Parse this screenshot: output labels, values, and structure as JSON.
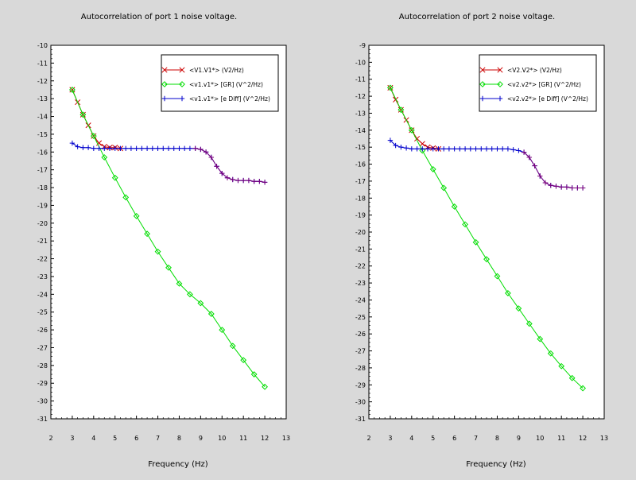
{
  "chart_data": [
    {
      "type": "line",
      "title": "Autocorrelation of port 1 noise voltage.",
      "xlabel": "Frequency (Hz)",
      "ylabel": "",
      "xlim": [
        2,
        13
      ],
      "ylim": [
        -31,
        -10
      ],
      "xticks": [
        2,
        3,
        4,
        5,
        6,
        7,
        8,
        9,
        10,
        11,
        12,
        13
      ],
      "yticks": [
        -10,
        -11,
        -12,
        -13,
        -14,
        -15,
        -16,
        -17,
        -18,
        -19,
        -20,
        -21,
        -22,
        -23,
        -24,
        -25,
        -26,
        -27,
        -28,
        -29,
        -30,
        -31
      ],
      "legend_position": "top-right",
      "series": [
        {
          "name": "<V1.V1*> (V2/Hz)",
          "color": "#cc0000",
          "marker": "x",
          "x": [
            3.0,
            3.25,
            3.5,
            3.75,
            4.0,
            4.25,
            4.5,
            4.75,
            5.0,
            5.25
          ],
          "y": [
            -12.5,
            -13.2,
            -13.9,
            -14.5,
            -15.1,
            -15.5,
            -15.7,
            -15.75,
            -15.75,
            -15.8
          ]
        },
        {
          "name": "<v1.v1*> [GR] (V^2/Hz)",
          "color": "#00dd00",
          "marker": "diamond",
          "x": [
            3.0,
            3.5,
            4.0,
            4.5,
            5.0,
            5.5,
            6.0,
            6.5,
            7.0,
            7.5,
            8.0,
            8.5,
            9.0,
            9.5,
            10.0,
            10.5,
            11.0,
            11.5,
            12.0
          ],
          "y": [
            -12.5,
            -13.9,
            -15.1,
            -16.3,
            -17.45,
            -18.55,
            -19.6,
            -20.6,
            -21.6,
            -22.5,
            -23.4,
            -24.0,
            -24.5,
            -25.1,
            -26.0,
            -26.9,
            -27.7,
            -28.5,
            -29.2
          ]
        },
        {
          "name": "<v1.v1*> [e Diff] (V^2/Hz)",
          "color": "#0000cc",
          "marker": "plus",
          "x": [
            3.0,
            3.25,
            3.5,
            3.75,
            4.0,
            4.25,
            4.5,
            4.75,
            5.0,
            5.25,
            5.5,
            5.75,
            6.0,
            6.25,
            6.5,
            6.75,
            7.0,
            7.25,
            7.5,
            7.75,
            8.0,
            8.25,
            8.5,
            8.75,
            9.0,
            9.25,
            9.5,
            9.75,
            10.0,
            10.25,
            10.5,
            10.75,
            11.0,
            11.25,
            11.5,
            11.75,
            12.0
          ],
          "y": [
            -15.5,
            -15.7,
            -15.75,
            -15.75,
            -15.8,
            -15.8,
            -15.8,
            -15.8,
            -15.8,
            -15.8,
            -15.8,
            -15.8,
            -15.8,
            -15.8,
            -15.8,
            -15.8,
            -15.8,
            -15.8,
            -15.8,
            -15.8,
            -15.8,
            -15.8,
            -15.8,
            -15.8,
            -15.85,
            -16.0,
            -16.3,
            -16.8,
            -17.2,
            -17.45,
            -17.55,
            -17.6,
            -17.6,
            -17.6,
            -17.65,
            -17.65,
            -17.7
          ]
        },
        {
          "name": "",
          "color": "#7a007a",
          "marker": "plus",
          "x": [
            8.75,
            9.0,
            9.25,
            9.5,
            9.75,
            10.0,
            10.25,
            10.5,
            10.75,
            11.0,
            11.25,
            11.5,
            11.75,
            12.0
          ],
          "y": [
            -15.8,
            -15.85,
            -16.0,
            -16.3,
            -16.8,
            -17.2,
            -17.45,
            -17.55,
            -17.6,
            -17.6,
            -17.6,
            -17.65,
            -17.65,
            -17.7
          ]
        }
      ]
    },
    {
      "type": "line",
      "title": "Autocorrelation of port 2 noise voltage.",
      "xlabel": "Frequency (Hz)",
      "ylabel": "",
      "xlim": [
        2,
        13
      ],
      "ylim": [
        -31,
        -9
      ],
      "xticks": [
        2,
        3,
        4,
        5,
        6,
        7,
        8,
        9,
        10,
        11,
        12,
        13
      ],
      "yticks": [
        -9,
        -10,
        -11,
        -12,
        -13,
        -14,
        -15,
        -16,
        -17,
        -18,
        -19,
        -20,
        -21,
        -22,
        -23,
        -24,
        -25,
        -26,
        -27,
        -28,
        -29,
        -30,
        -31
      ],
      "legend_position": "top-right",
      "series": [
        {
          "name": "<V2.V2*> (V2/Hz)",
          "color": "#cc0000",
          "marker": "x",
          "x": [
            3.0,
            3.25,
            3.5,
            3.75,
            4.0,
            4.25,
            4.5,
            4.75,
            5.0,
            5.25
          ],
          "y": [
            -11.5,
            -12.2,
            -12.8,
            -13.4,
            -14.0,
            -14.5,
            -14.8,
            -15.0,
            -15.05,
            -15.1
          ]
        },
        {
          "name": "<v2.v2*> [GR] (V^2/Hz)",
          "color": "#00dd00",
          "marker": "diamond",
          "x": [
            3.0,
            3.5,
            4.0,
            4.5,
            5.0,
            5.5,
            6.0,
            6.5,
            7.0,
            7.5,
            8.0,
            8.5,
            9.0,
            9.5,
            10.0,
            10.5,
            11.0,
            11.5,
            12.0
          ],
          "y": [
            -11.5,
            -12.8,
            -14.0,
            -15.2,
            -16.3,
            -17.4,
            -18.5,
            -19.55,
            -20.6,
            -21.6,
            -22.6,
            -23.6,
            -24.5,
            -25.4,
            -26.3,
            -27.15,
            -27.9,
            -28.6,
            -29.2
          ]
        },
        {
          "name": "<v2.v2*> [e Diff] (V^2/Hz)",
          "color": "#0000cc",
          "marker": "plus",
          "x": [
            3.0,
            3.25,
            3.5,
            3.75,
            4.0,
            4.25,
            4.5,
            4.75,
            5.0,
            5.25,
            5.5,
            5.75,
            6.0,
            6.25,
            6.5,
            6.75,
            7.0,
            7.25,
            7.5,
            7.75,
            8.0,
            8.25,
            8.5,
            8.75,
            9.0,
            9.25,
            9.5,
            9.75,
            10.0,
            10.25,
            10.5,
            10.75,
            11.0,
            11.25,
            11.5,
            11.75,
            12.0
          ],
          "y": [
            -14.6,
            -14.9,
            -15.0,
            -15.05,
            -15.1,
            -15.1,
            -15.1,
            -15.1,
            -15.1,
            -15.1,
            -15.1,
            -15.1,
            -15.1,
            -15.1,
            -15.1,
            -15.1,
            -15.1,
            -15.1,
            -15.1,
            -15.1,
            -15.1,
            -15.1,
            -15.1,
            -15.15,
            -15.2,
            -15.3,
            -15.6,
            -16.1,
            -16.7,
            -17.1,
            -17.25,
            -17.3,
            -17.35,
            -17.35,
            -17.4,
            -17.4,
            -17.4
          ]
        },
        {
          "name": "",
          "color": "#7a007a",
          "marker": "plus",
          "x": [
            9.25,
            9.5,
            9.75,
            10.0,
            10.25,
            10.5,
            10.75,
            11.0,
            11.25,
            11.5,
            11.75,
            12.0
          ],
          "y": [
            -15.3,
            -15.6,
            -16.1,
            -16.7,
            -17.1,
            -17.25,
            -17.3,
            -17.35,
            -17.35,
            -17.4,
            -17.4,
            -17.4
          ]
        }
      ]
    }
  ]
}
